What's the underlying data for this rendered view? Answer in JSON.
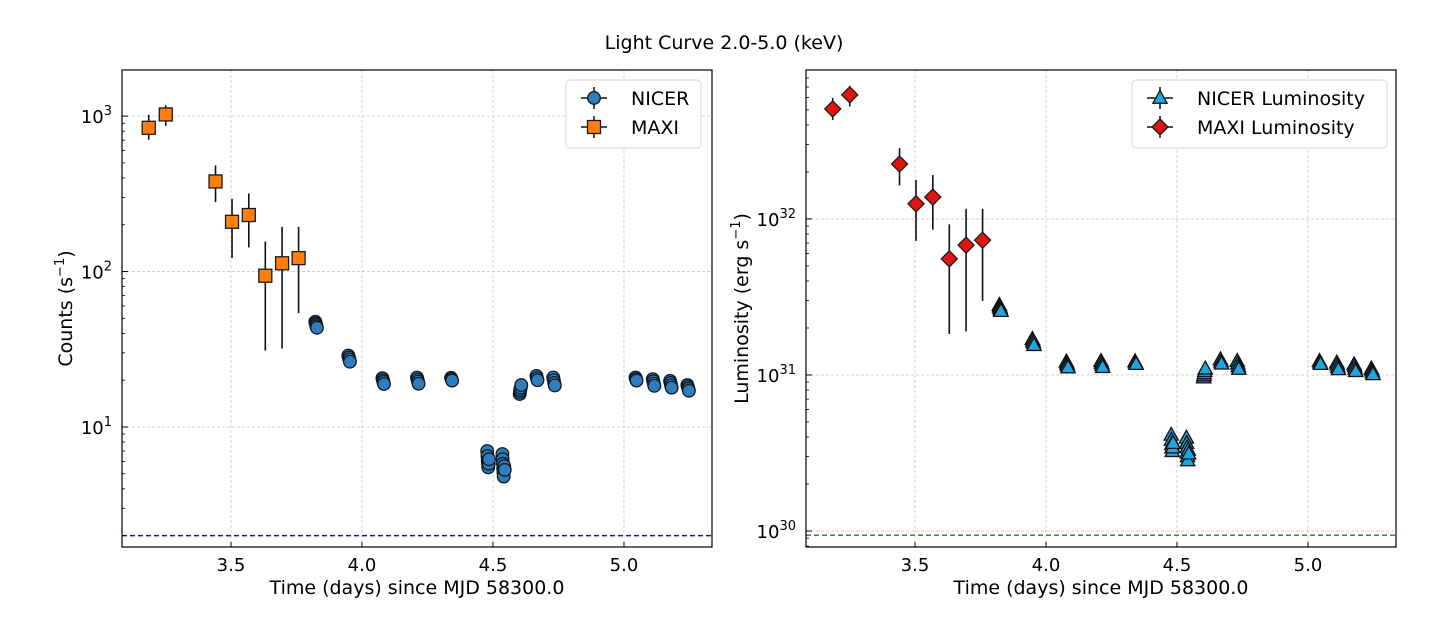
{
  "figure": {
    "suptitle": "Light Curve 2.0-5.0 (keV)"
  },
  "chart_data": [
    {
      "type": "scatter",
      "panel": "left",
      "title": "",
      "xlabel": "Time (days) since MJD 58300.0",
      "ylabel": "Counts (s$^{-1}$)",
      "ylabel_parts": {
        "base": "Counts (s",
        "sup": "−1",
        "end": ")"
      },
      "yscale": "log",
      "xlim": [
        3.084,
        5.336
      ],
      "ylim": [
        1.69,
        1980
      ],
      "xticks": [
        3.5,
        4.0,
        4.5,
        5.0
      ],
      "xtick_labels": [
        "3.5",
        "4.0",
        "4.5",
        "5.0"
      ],
      "yticks": [
        10,
        100,
        1000
      ],
      "ytick_labels": [
        {
          "base": "10",
          "exp": "1"
        },
        {
          "base": "10",
          "exp": "2"
        },
        {
          "base": "10",
          "exp": "3"
        }
      ],
      "grid": true,
      "legend_position": "top-right",
      "hline": {
        "y": 2.0,
        "color": "#0b1f80",
        "style": "dashed"
      },
      "series": [
        {
          "name": "NICER",
          "marker": "circle",
          "color": "#2f7dbd",
          "edge": "#101820",
          "points": [
            [
              3.822,
              47.5
            ],
            [
              3.823,
              46.5
            ],
            [
              3.825,
              45.5
            ],
            [
              3.826,
              44.5
            ],
            [
              3.828,
              43.5
            ],
            [
              3.948,
              28.8
            ],
            [
              3.95,
              28.0
            ],
            [
              3.952,
              27.2
            ],
            [
              3.954,
              26.3
            ],
            [
              4.078,
              20.6
            ],
            [
              4.08,
              20.0
            ],
            [
              4.082,
              19.5
            ],
            [
              4.084,
              18.9
            ],
            [
              4.21,
              20.8
            ],
            [
              4.212,
              20.2
            ],
            [
              4.214,
              19.6
            ],
            [
              4.216,
              19.0
            ],
            [
              4.34,
              20.7
            ],
            [
              4.342,
              20.3
            ],
            [
              4.344,
              19.9
            ],
            [
              4.478,
              7.0
            ],
            [
              4.479,
              6.5
            ],
            [
              4.48,
              6.1
            ],
            [
              4.481,
              5.8
            ],
            [
              4.482,
              5.5
            ],
            [
              4.484,
              5.8
            ],
            [
              4.485,
              6.2
            ],
            [
              4.536,
              6.7
            ],
            [
              4.537,
              6.2
            ],
            [
              4.538,
              5.8
            ],
            [
              4.539,
              5.4
            ],
            [
              4.54,
              5.1
            ],
            [
              4.541,
              4.8
            ],
            [
              4.543,
              5.6
            ],
            [
              4.545,
              5.3
            ],
            [
              4.602,
              16.3
            ],
            [
              4.603,
              16.8
            ],
            [
              4.604,
              17.3
            ],
            [
              4.606,
              17.9
            ],
            [
              4.608,
              18.6
            ],
            [
              4.666,
              21.3
            ],
            [
              4.668,
              20.6
            ],
            [
              4.67,
              20.0
            ],
            [
              4.73,
              20.8
            ],
            [
              4.732,
              20.0
            ],
            [
              4.734,
              19.2
            ],
            [
              4.736,
              18.5
            ],
            [
              5.044,
              20.8
            ],
            [
              5.046,
              20.3
            ],
            [
              5.048,
              19.9
            ],
            [
              5.11,
              20.3
            ],
            [
              5.112,
              19.7
            ],
            [
              5.114,
              19.0
            ],
            [
              5.116,
              18.4
            ],
            [
              5.176,
              19.8
            ],
            [
              5.178,
              19.2
            ],
            [
              5.18,
              18.5
            ],
            [
              5.182,
              17.9
            ],
            [
              5.242,
              18.6
            ],
            [
              5.244,
              18.1
            ],
            [
              5.246,
              17.6
            ],
            [
              5.248,
              17.1
            ]
          ]
        },
        {
          "name": "MAXI",
          "marker": "square",
          "color": "#ff7f0e",
          "edge": "#1a1a1a",
          "points": [
            {
              "x": 3.186,
              "y": 841,
              "lo": 705,
              "hi": 1021
            },
            {
              "x": 3.251,
              "y": 1025,
              "lo": 865,
              "hi": 1175
            },
            {
              "x": 3.441,
              "y": 380,
              "lo": 280,
              "hi": 482
            },
            {
              "x": 3.504,
              "y": 209,
              "lo": 122,
              "hi": 294
            },
            {
              "x": 3.568,
              "y": 231,
              "lo": 143,
              "hi": 318
            },
            {
              "x": 3.631,
              "y": 94,
              "lo": 31,
              "hi": 156
            },
            {
              "x": 3.695,
              "y": 113,
              "lo": 32,
              "hi": 194
            },
            {
              "x": 3.758,
              "y": 122,
              "lo": 54,
              "hi": 194
            }
          ]
        }
      ]
    },
    {
      "type": "scatter",
      "panel": "right",
      "title": "",
      "xlabel": "Time (days) since MJD 58300.0",
      "ylabel": "Luminosity (erg s$^{-1}$)",
      "ylabel_parts": {
        "base": "Luminosity (erg s",
        "sup": "−1",
        "end": ")"
      },
      "yscale": "log",
      "xlim": [
        3.084,
        5.336
      ],
      "ylim": [
        7.9e+29,
        9e+32
      ],
      "xticks": [
        3.5,
        4.0,
        4.5,
        5.0
      ],
      "xtick_labels": [
        "3.5",
        "4.0",
        "4.5",
        "5.0"
      ],
      "yticks": [
        1e+30,
        1e+31,
        1e+32
      ],
      "ytick_labels": [
        {
          "base": "10",
          "exp": "30"
        },
        {
          "base": "10",
          "exp": "31"
        },
        {
          "base": "10",
          "exp": "32"
        }
      ],
      "grid": true,
      "legend_position": "top-right",
      "hline": {
        "y": 9.4e+29,
        "color": "#2a7a2a",
        "style": "dashed"
      },
      "nicer_scale": 5.9e+29,
      "series": [
        {
          "name": "NICER Luminosity",
          "marker": "triangle",
          "color": "#1fa6df",
          "edge": "#101010",
          "derived_from": "NICER"
        },
        {
          "name": "MAXI Luminosity",
          "marker": "diamond",
          "color": "#e3140f",
          "edge": "#1a1a1a",
          "points": [
            {
              "x": 3.186,
              "y": 5.07e+32,
              "lo": 4.31e+32,
              "hi": 5.97e+32
            },
            {
              "x": 3.251,
              "y": 6.24e+32,
              "lo": 5.26e+32,
              "hi": 7.13e+32
            },
            {
              "x": 3.441,
              "y": 2.25e+32,
              "lo": 1.64e+32,
              "hi": 2.84e+32
            },
            {
              "x": 3.504,
              "y": 1.25e+32,
              "lo": 7.23e+31,
              "hi": 1.78e+32
            },
            {
              "x": 3.568,
              "y": 1.38e+32,
              "lo": 8.53e+31,
              "hi": 1.91e+32
            },
            {
              "x": 3.631,
              "y": 5.55e+31,
              "lo": 1.83e+31,
              "hi": 9.23e+31
            },
            {
              "x": 3.695,
              "y": 6.79e+31,
              "lo": 1.9e+31,
              "hi": 1.16e+32
            },
            {
              "x": 3.758,
              "y": 7.31e+31,
              "lo": 2.98e+31,
              "hi": 1.16e+32
            }
          ]
        }
      ]
    }
  ]
}
